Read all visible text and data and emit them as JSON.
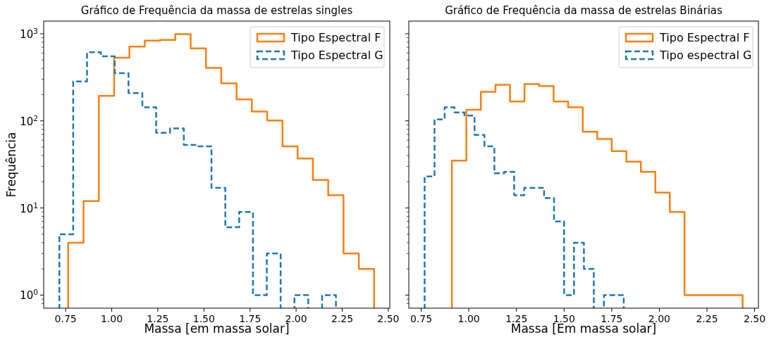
{
  "chart_data": [
    {
      "type": "step",
      "title": "Gráfico de Frequência da massa de estrelas singles",
      "xlabel": "Massa [em massa solar]",
      "ylabel": "Frequência",
      "log": "y",
      "legend": "top right",
      "grid": false,
      "xlim": [
        0.631,
        2.508
      ],
      "xticks": [
        {
          "value": 0.75,
          "label": "0.75"
        },
        {
          "value": 1.0,
          "label": "1.00"
        },
        {
          "value": 1.25,
          "label": "1.25"
        },
        {
          "value": 1.5,
          "label": "1.50"
        },
        {
          "value": 1.75,
          "label": "1.75"
        },
        {
          "value": 2.0,
          "label": "2.00"
        },
        {
          "value": 2.25,
          "label": "2.25"
        },
        {
          "value": 2.5,
          "label": "2.50"
        }
      ],
      "ylim": [
        0.708,
        1396
      ],
      "yticks": [
        {
          "value": 1,
          "label": "10$^{0}$"
        },
        {
          "value": 10,
          "label": "10$^{1}$"
        },
        {
          "value": 100,
          "label": "10$^{2}$"
        },
        {
          "value": 1000,
          "label": "10$^{3}$"
        },
        {
          "value": 0.8,
          "label": null
        },
        {
          "value": 0.9,
          "label": null
        },
        {
          "value": 2,
          "label": null
        },
        {
          "value": 3,
          "label": null
        },
        {
          "value": 4,
          "label": null
        },
        {
          "value": 5,
          "label": null
        },
        {
          "value": 6,
          "label": null
        },
        {
          "value": 7,
          "label": null
        },
        {
          "value": 8,
          "label": null
        },
        {
          "value": 9,
          "label": null
        },
        {
          "value": 20,
          "label": null
        },
        {
          "value": 30,
          "label": null
        },
        {
          "value": 40,
          "label": null
        },
        {
          "value": 50,
          "label": null
        },
        {
          "value": 60,
          "label": null
        },
        {
          "value": 70,
          "label": null
        },
        {
          "value": 80,
          "label": null
        },
        {
          "value": 90,
          "label": null
        },
        {
          "value": 200,
          "label": null
        },
        {
          "value": 300,
          "label": null
        },
        {
          "value": 400,
          "label": null
        },
        {
          "value": 500,
          "label": null
        },
        {
          "value": 600,
          "label": null
        },
        {
          "value": 700,
          "label": null
        },
        {
          "value": 800,
          "label": null
        },
        {
          "value": 900,
          "label": null
        }
      ],
      "series": [
        {
          "name": "Tipo Espectral F",
          "color": "#ff7f0e",
          "line_style": "solid",
          "x": [
            0.764,
            0.847,
            0.93,
            1.013,
            1.096,
            1.179,
            1.262,
            1.345,
            1.428,
            1.511,
            1.594,
            1.677,
            1.76,
            1.843,
            1.926,
            2.008,
            2.091,
            2.174,
            2.257,
            2.34,
            2.423
          ],
          "values": [
            4,
            12,
            194,
            532,
            713,
            832,
            847,
            988,
            679,
            405,
            269,
            176,
            128,
            101,
            51,
            37,
            21,
            14,
            3,
            2,
            2
          ]
        },
        {
          "name": "Tipo Espectral G",
          "color": "#1f77b4",
          "line_style": "dashed",
          "x": [
            0.716,
            0.791,
            0.866,
            0.941,
            1.016,
            1.091,
            1.166,
            1.241,
            1.316,
            1.391,
            1.466,
            1.541,
            1.616,
            1.691,
            1.766,
            1.841,
            1.916,
            1.991,
            2.066,
            2.141,
            2.216
          ],
          "values": [
            5,
            284,
            612,
            551,
            352,
            209,
            143,
            73,
            82,
            53,
            51,
            17,
            6,
            9,
            1,
            3,
            null,
            1,
            null,
            1,
            1
          ]
        }
      ]
    },
    {
      "type": "step",
      "title": "Gráfico de Frequência da massa de estrelas Binárias",
      "xlabel": "Massa [Em massa solar]",
      "log": "y",
      "legend": "top right",
      "grid": false,
      "tick_labels": "x",
      "xlim": [
        0.685,
        2.52
      ],
      "xticks": [
        {
          "value": 0.75,
          "label": "0.75"
        },
        {
          "value": 1.0,
          "label": "1.00"
        },
        {
          "value": 1.25,
          "label": "1.25"
        },
        {
          "value": 1.5,
          "label": "1.50"
        },
        {
          "value": 1.75,
          "label": "1.75"
        },
        {
          "value": 2.0,
          "label": "2.00"
        },
        {
          "value": 2.25,
          "label": "2.25"
        },
        {
          "value": 2.5,
          "label": "2.50"
        }
      ],
      "ylim": [
        0.708,
        1396
      ],
      "yticks": [
        {
          "value": 1,
          "label": null
        },
        {
          "value": 10,
          "label": null
        },
        {
          "value": 100,
          "label": null
        },
        {
          "value": 1000,
          "label": null
        },
        {
          "value": 0.8,
          "label": null
        },
        {
          "value": 0.9,
          "label": null
        },
        {
          "value": 2,
          "label": null
        },
        {
          "value": 3,
          "label": null
        },
        {
          "value": 4,
          "label": null
        },
        {
          "value": 5,
          "label": null
        },
        {
          "value": 6,
          "label": null
        },
        {
          "value": 7,
          "label": null
        },
        {
          "value": 8,
          "label": null
        },
        {
          "value": 9,
          "label": null
        },
        {
          "value": 20,
          "label": null
        },
        {
          "value": 30,
          "label": null
        },
        {
          "value": 40,
          "label": null
        },
        {
          "value": 50,
          "label": null
        },
        {
          "value": 60,
          "label": null
        },
        {
          "value": 70,
          "label": null
        },
        {
          "value": 80,
          "label": null
        },
        {
          "value": 90,
          "label": null
        },
        {
          "value": 200,
          "label": null
        },
        {
          "value": 300,
          "label": null
        },
        {
          "value": 400,
          "label": null
        },
        {
          "value": 500,
          "label": null
        },
        {
          "value": 600,
          "label": null
        },
        {
          "value": 700,
          "label": null
        },
        {
          "value": 800,
          "label": null
        },
        {
          "value": 900,
          "label": null
        }
      ],
      "series": [
        {
          "name": "Tipo Espectral F",
          "color": "#ff7f0e",
          "line_style": "solid",
          "x": [
            0.911,
            0.987,
            1.063,
            1.14,
            1.216,
            1.292,
            1.369,
            1.445,
            1.521,
            1.598,
            1.674,
            1.75,
            1.827,
            1.903,
            1.979,
            2.055,
            2.132,
            2.208,
            2.284,
            2.361,
            2.437
          ],
          "values": [
            35,
            134,
            215,
            259,
            167,
            264,
            251,
            167,
            143,
            75,
            62,
            45,
            34,
            26,
            15,
            9,
            1,
            1,
            1,
            1,
            1
          ]
        },
        {
          "name": "Tipo espectral G",
          "color": "#1f77b4",
          "line_style": "dashed",
          "x": [
            0.768,
            0.82,
            0.873,
            0.925,
            0.977,
            1.03,
            1.082,
            1.134,
            1.186,
            1.238,
            1.291,
            1.343,
            1.395,
            1.447,
            1.5,
            1.552,
            1.604,
            1.656,
            1.709,
            1.761,
            1.813
          ],
          "values": [
            23,
            104,
            143,
            125,
            115,
            69,
            51,
            25,
            26,
            14,
            17,
            17,
            13,
            7,
            1,
            4,
            2,
            null,
            1,
            1,
            1
          ]
        }
      ]
    }
  ]
}
